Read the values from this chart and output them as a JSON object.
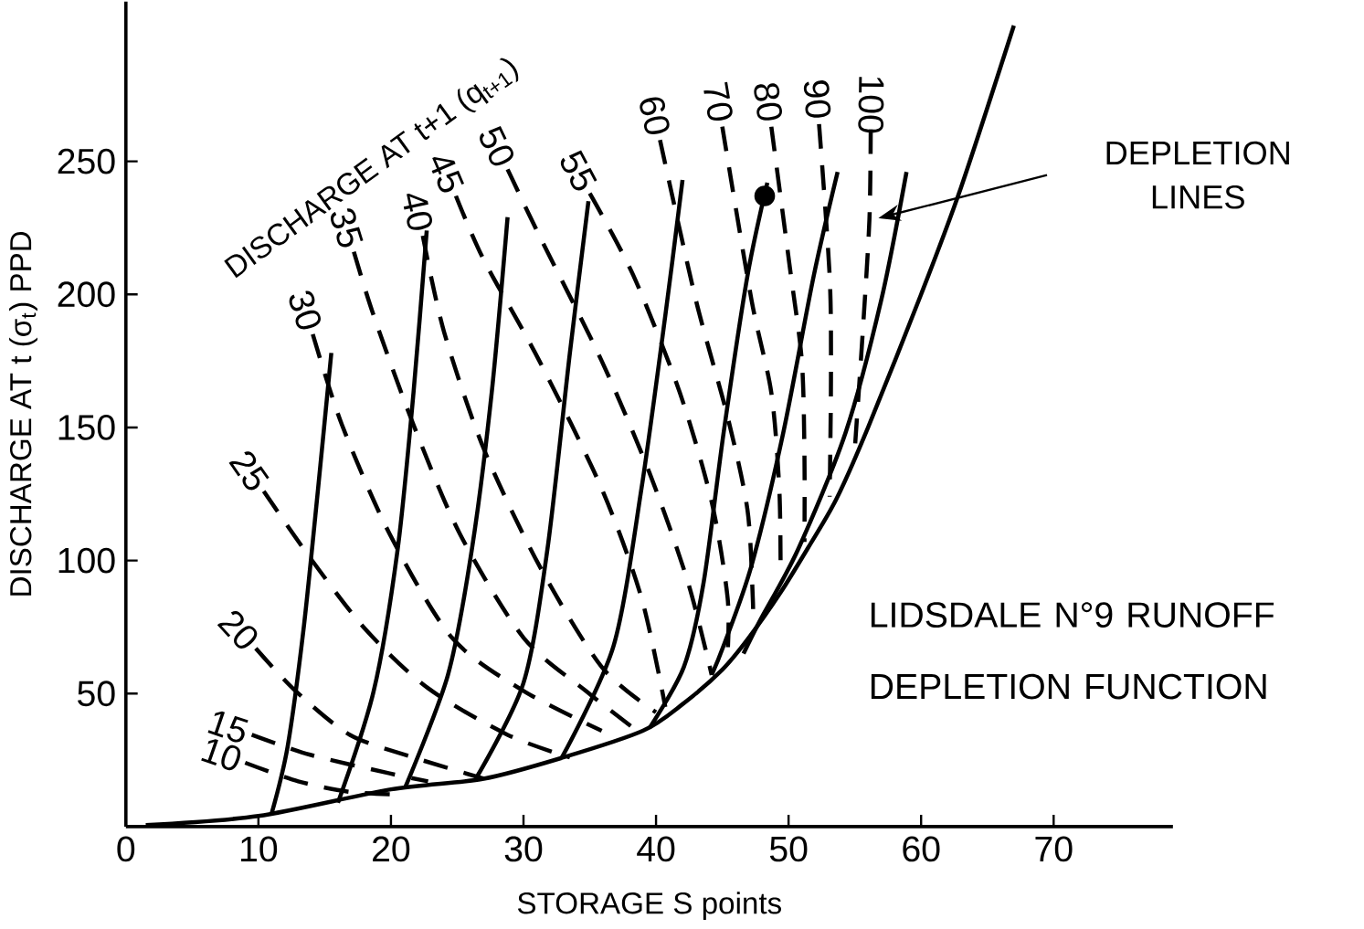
{
  "chart_data": {
    "type": "line",
    "title": "LIDSDALE N°9 RUNOFF DEPLETION FUNCTION",
    "xlabel": "STORAGE  S  points",
    "ylabel": "DISCHARGE AT t (σ$_{t}$) PPD",
    "annotations": [
      "DISCHARGE AT t+1 (q$_{t+1}$)",
      "DEPLETION LINES"
    ],
    "xlim": [
      0,
      79
    ],
    "ylim": [
      0,
      310
    ],
    "xticks": [
      0,
      10,
      20,
      30,
      40,
      50,
      60,
      70
    ],
    "yticks": [
      50,
      100,
      150,
      200,
      250
    ],
    "series": [
      {
        "color": "#000000",
        "line_style": "solid",
        "x": [
          1.5,
          10,
          20,
          27,
          33,
          39,
          42,
          45,
          47,
          49.4,
          51.5,
          53.6,
          56,
          60,
          63,
          67
        ],
        "values": [
          0.6,
          4,
          14,
          18,
          26,
          36,
          46,
          59,
          71,
          88,
          105,
          123,
          150,
          200,
          240,
          301
        ]
      },
      {
        "color": "#000000",
        "line_style": "solid",
        "x": [
          15.5,
          14.5,
          13.4,
          12.2,
          11
        ],
        "values": [
          178,
          127,
          74,
          30,
          5
        ]
      },
      {
        "color": "#000000",
        "line_style": "solid",
        "x": [
          22.7,
          21.7,
          20.5,
          18.7,
          16
        ],
        "values": [
          224,
          163,
          104,
          51,
          9
        ]
      },
      {
        "color": "#000000",
        "line_style": "solid",
        "x": [
          28.8,
          27.6,
          26.1,
          24.3,
          21.1
        ],
        "values": [
          229,
          163,
          104,
          57,
          15
        ]
      },
      {
        "color": "#000000",
        "line_style": "solid",
        "x": [
          34.9,
          33.5,
          31.8,
          30,
          26.4
        ],
        "values": [
          235,
          178,
          104,
          54,
          18
        ]
      },
      {
        "color": "#000000",
        "line_style": "solid",
        "x": [
          42,
          40.7,
          38.9,
          36.8,
          32.9
        ],
        "values": [
          243,
          192,
          127,
          68,
          26
        ]
      },
      {
        "color": "#000000",
        "line_style": "solid",
        "x": [
          48.4,
          46.9,
          45.1,
          43.6,
          42.1,
          39.5
        ],
        "values": [
          242,
          207,
          148,
          92,
          60,
          37
        ]
      },
      {
        "color": "#000000",
        "line_style": "solid",
        "x": [
          53.7,
          51.9,
          49.6,
          47.2,
          45.1,
          44.2
        ],
        "values": [
          246,
          207,
          148,
          98,
          68,
          57
        ]
      },
      {
        "color": "#000000",
        "line_style": "solid",
        "x": [
          58.9,
          57,
          54.3,
          50.7,
          47.8,
          46.6
        ],
        "values": [
          246,
          198,
          148,
          104,
          77,
          65
        ]
      },
      {
        "name": "10",
        "color": "#000000",
        "line_style": "dashed",
        "x": [
          9,
          13,
          17,
          21
        ],
        "values": [
          24,
          17,
          13,
          12
        ]
      },
      {
        "name": "15",
        "color": "#000000",
        "line_style": "dashed",
        "x": [
          9.5,
          13.9,
          19.9,
          22.8
        ],
        "values": [
          34.5,
          27,
          20,
          17
        ]
      },
      {
        "name": "20",
        "color": "#000000",
        "line_style": "dashed",
        "x": [
          9.8,
          12.8,
          16.9,
          21.7,
          27
        ],
        "values": [
          67,
          51,
          34.5,
          26,
          18
        ]
      },
      {
        "name": "25",
        "color": "#000000",
        "line_style": "dashed",
        "x": [
          10.4,
          13.9,
          18.1,
          22.8,
          28.8,
          33.5
        ],
        "values": [
          126,
          101,
          74,
          52,
          34.5,
          26
        ]
      },
      {
        "name": "30",
        "color": "#000000",
        "line_style": "dashed",
        "x": [
          14.1,
          16.3,
          19.9,
          24.6,
          30,
          35.9
        ],
        "values": [
          185,
          151,
          110,
          71,
          51,
          36
        ]
      },
      {
        "name": "35",
        "color": "#000000",
        "line_style": "dashed",
        "x": [
          17.2,
          18.7,
          21.7,
          25.2,
          30,
          34.7,
          38.3
        ],
        "values": [
          216,
          192,
          151,
          110,
          71,
          51,
          37
        ]
      },
      {
        "name": "40",
        "color": "#000000",
        "line_style": "dashed",
        "x": [
          22.4,
          24,
          27,
          31.2,
          35.9,
          40
        ],
        "values": [
          222,
          186,
          142,
          98,
          60,
          43
        ]
      },
      {
        "name": "45",
        "color": "#000000",
        "line_style": "dashed",
        "x": [
          24.9,
          27,
          31.2,
          35.9,
          38.9,
          40.7
        ],
        "values": [
          237,
          213,
          175,
          127,
          86,
          45
        ]
      },
      {
        "name": "50",
        "color": "#000000",
        "line_style": "dashed",
        "x": [
          28.8,
          31.2,
          35.9,
          39.5,
          42.4,
          44.2
        ],
        "values": [
          247,
          222,
          175,
          133,
          92,
          57
        ]
      },
      {
        "name": "55",
        "color": "#000000",
        "line_style": "dashed",
        "x": [
          35,
          38.3,
          41.8,
          44.2,
          45.4,
          45.4
        ],
        "values": [
          238,
          207,
          163,
          122,
          86,
          65
        ]
      },
      {
        "name": "60",
        "color": "#000000",
        "line_style": "dashed",
        "x": [
          40.3,
          43,
          45.4,
          46.9,
          47.3,
          47.3
        ],
        "values": [
          258,
          198,
          154,
          119,
          86,
          77
        ]
      },
      {
        "name": "70",
        "color": "#000000",
        "line_style": "dashed",
        "x": [
          45,
          47.2,
          48.7,
          49.3,
          49.4
        ],
        "values": [
          263,
          198,
          163,
          127,
          95
        ]
      },
      {
        "name": "80",
        "color": "#000000",
        "line_style": "dashed",
        "x": [
          48.7,
          50.1,
          51,
          51.2,
          51.2
        ],
        "values": [
          263,
          210,
          175,
          139,
          107
        ]
      },
      {
        "name": "90",
        "color": "#000000",
        "line_style": "dashed",
        "x": [
          52.3,
          53.1,
          53.2,
          53.1
        ],
        "values": [
          264,
          207,
          169,
          124
        ]
      },
      {
        "name": "100",
        "color": "#000000",
        "line_style": "dashed",
        "x": [
          56.2,
          56.1,
          55.6,
          55
        ],
        "values": [
          262,
          228,
          186,
          142
        ]
      },
      {
        "type": "scatter",
        "marker": "circle",
        "color": "#000000",
        "x": [
          48.2
        ],
        "values": [
          237
        ]
      }
    ]
  }
}
